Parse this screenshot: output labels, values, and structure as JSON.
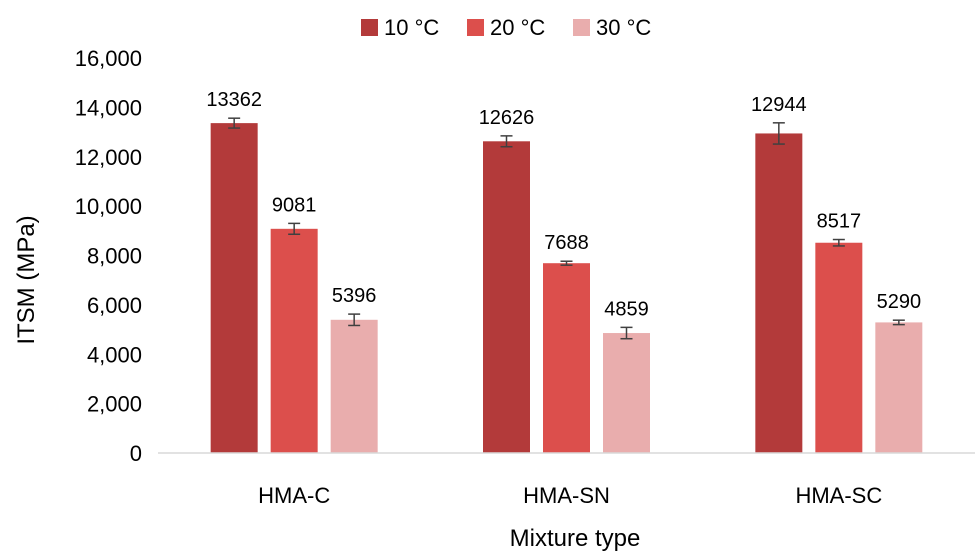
{
  "chart_data": {
    "type": "bar",
    "title": "",
    "xlabel": "Mixture type",
    "ylabel": "ITSM (MPa)",
    "ylim": [
      0,
      16000
    ],
    "yticks": [
      0,
      2000,
      4000,
      6000,
      8000,
      10000,
      12000,
      14000,
      16000
    ],
    "ytick_labels": [
      "0",
      "2,000",
      "4,000",
      "6,000",
      "8,000",
      "10,000",
      "12,000",
      "14,000",
      "16,000"
    ],
    "categories": [
      "HMA-C",
      "HMA-SN",
      "HMA-SC"
    ],
    "legend_position": "top",
    "grid": false,
    "series": [
      {
        "name": "10 °C",
        "color": "#B33A3A",
        "values": [
          13362,
          12626,
          12944
        ],
        "errors": [
          200,
          220,
          430
        ],
        "labels": [
          "13362",
          "12626",
          "12944"
        ]
      },
      {
        "name": "20 °C",
        "color": "#DC4F4C",
        "values": [
          9081,
          7688,
          8517
        ],
        "errors": [
          220,
          80,
          130
        ],
        "labels": [
          "9081",
          "7688",
          "8517"
        ]
      },
      {
        "name": "30 °C",
        "color": "#E9ADAD",
        "values": [
          5396,
          4859,
          5290
        ],
        "errors": [
          230,
          230,
          90
        ],
        "labels": [
          "5396",
          "4859",
          "5290"
        ]
      }
    ]
  }
}
